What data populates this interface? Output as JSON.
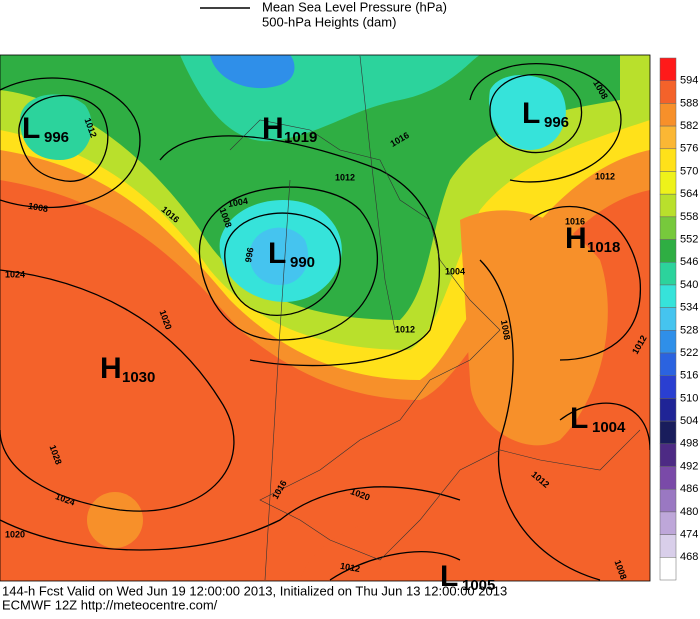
{
  "legend": [
    {
      "label": "Mean Sea Level Pressure (hPa)"
    },
    {
      "label": "500-hPa Heights (dam)"
    }
  ],
  "colorbar": {
    "labels": [
      "594",
      "588",
      "582",
      "576",
      "570",
      "564",
      "558",
      "552",
      "546",
      "540",
      "534",
      "528",
      "522",
      "516",
      "510",
      "504",
      "498",
      "492",
      "486",
      "480",
      "474",
      "468"
    ],
    "colors": [
      "#ff1a1a",
      "#f4622a",
      "#f7902a",
      "#fbb734",
      "#ffe11a",
      "#eef21a",
      "#b9e02c",
      "#77c93c",
      "#2fae43",
      "#2cd39c",
      "#36e3da",
      "#45c4ef",
      "#2f8fe9",
      "#2b63e0",
      "#2a3fd1",
      "#1f2496",
      "#191d5c",
      "#4d2a84",
      "#7a4aa8",
      "#9a78c2",
      "#bea7d9",
      "#d9cfea",
      "#ffffff"
    ]
  },
  "pressure_centers": [
    {
      "letter": "L",
      "value": "996"
    },
    {
      "letter": "H",
      "value": "1019"
    },
    {
      "letter": "L",
      "value": "996"
    },
    {
      "letter": "L",
      "value": "990"
    },
    {
      "letter": "H",
      "value": "1018"
    },
    {
      "letter": "H",
      "value": "1030"
    },
    {
      "letter": "L",
      "value": "1004"
    },
    {
      "letter": "L",
      "value": "1005"
    }
  ],
  "isobar_labels": [
    "1012",
    "1008",
    "1016",
    "1008",
    "1004",
    "996",
    "1012",
    "1016",
    "1008",
    "1012",
    "1016",
    "1024",
    "1020",
    "1004",
    "1012",
    "1008",
    "1012",
    "1028",
    "1024",
    "1020",
    "1016",
    "1020",
    "1012",
    "1012",
    "1008"
  ],
  "footer": [
    "144-h Fcst Valid on Wed Jun 19 12:00:00 2013, Initialized on Thu Jun 13 12:00:00 2013",
    "ECMWF 12Z http://meteocentre.com/"
  ]
}
